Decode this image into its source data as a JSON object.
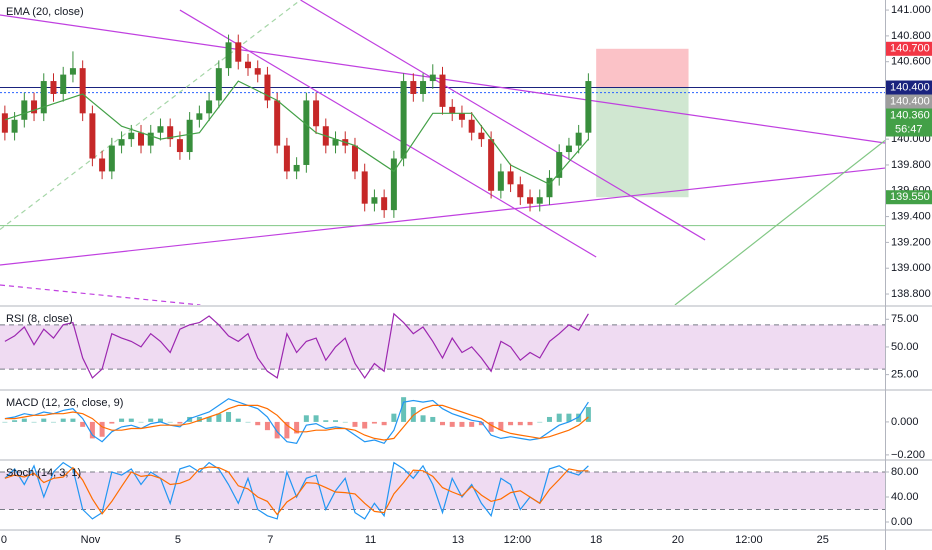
{
  "chart_data": [
    {
      "type": "candlestick",
      "ema": {
        "name": "EMA (20, close)",
        "color": "#43a047",
        "x": [
          0.5,
          4.5,
          8.5,
          12.5,
          16.5,
          20.5,
          24.5,
          28.5,
          32.5,
          36.5,
          40.5,
          44.5,
          48.5,
          52.5,
          56.5,
          60.5
        ],
        "values": [
          140.15,
          140.25,
          140.35,
          140.1,
          140.0,
          140.05,
          140.45,
          140.3,
          140.05,
          139.95,
          139.75,
          140.2,
          140.2,
          139.8,
          139.65,
          140.0
        ]
      },
      "up_color": "#388e3c",
      "down_color": "#c62828",
      "open": [
        140.2,
        140.05,
        140.15,
        140.3,
        140.2,
        140.45,
        140.35,
        140.5,
        140.55,
        140.2,
        139.85,
        139.75,
        139.95,
        140.0,
        140.05,
        139.95,
        140.05,
        140.1,
        140.0,
        139.9,
        140.15,
        140.2,
        140.3,
        140.55,
        140.75,
        140.6,
        140.55,
        140.5,
        140.3,
        139.95,
        139.75,
        139.8,
        140.3,
        140.1,
        139.95,
        140.0,
        139.95,
        139.75,
        139.5,
        139.55,
        139.45,
        139.85,
        140.45,
        140.35,
        140.45,
        140.5,
        140.25,
        140.2,
        140.15,
        140.05,
        140.0,
        139.6,
        139.75,
        139.65,
        139.55,
        139.5,
        139.55,
        139.7,
        139.9,
        139.95,
        140.05
      ],
      "high": [
        140.26,
        140.21,
        140.36,
        140.36,
        140.51,
        140.51,
        140.56,
        140.68,
        140.61,
        140.26,
        139.91,
        140.01,
        140.06,
        140.11,
        140.11,
        140.11,
        140.16,
        140.16,
        140.06,
        140.21,
        140.26,
        140.36,
        140.61,
        140.81,
        140.81,
        140.66,
        140.61,
        140.56,
        140.36,
        140.01,
        139.86,
        140.36,
        140.36,
        140.16,
        140.06,
        140.06,
        140.01,
        139.81,
        139.61,
        139.61,
        139.91,
        140.51,
        140.51,
        140.51,
        140.58,
        140.56,
        140.31,
        140.26,
        140.21,
        140.11,
        140.06,
        139.81,
        139.81,
        139.71,
        139.61,
        139.61,
        139.76,
        139.96,
        140.01,
        140.11,
        140.51
      ],
      "low": [
        139.99,
        139.99,
        140.09,
        140.14,
        140.14,
        140.29,
        140.29,
        140.44,
        140.14,
        139.79,
        139.69,
        139.69,
        139.89,
        139.94,
        139.89,
        139.89,
        139.99,
        139.94,
        139.84,
        139.84,
        140.09,
        140.14,
        140.24,
        140.49,
        140.54,
        140.49,
        140.44,
        140.24,
        139.89,
        139.69,
        139.69,
        139.74,
        140.04,
        139.89,
        139.89,
        139.89,
        139.69,
        139.44,
        139.44,
        139.39,
        139.39,
        139.79,
        140.29,
        140.29,
        140.39,
        140.19,
        140.14,
        140.09,
        139.99,
        139.94,
        139.54,
        139.54,
        139.59,
        139.49,
        139.44,
        139.44,
        139.49,
        139.64,
        139.84,
        139.89,
        139.99
      ],
      "close": [
        140.05,
        140.15,
        140.3,
        140.2,
        140.45,
        140.35,
        140.5,
        140.55,
        140.2,
        139.85,
        139.75,
        139.95,
        140.0,
        140.05,
        139.95,
        140.05,
        140.1,
        140.0,
        139.9,
        140.15,
        140.2,
        140.3,
        140.55,
        140.75,
        140.6,
        140.55,
        140.5,
        140.3,
        139.95,
        139.75,
        139.8,
        140.3,
        140.1,
        139.95,
        140.0,
        139.95,
        139.75,
        139.5,
        139.55,
        139.45,
        139.85,
        140.45,
        140.35,
        140.45,
        140.5,
        140.25,
        140.2,
        140.15,
        140.05,
        140.0,
        139.6,
        139.75,
        139.65,
        139.55,
        139.5,
        139.55,
        139.7,
        139.9,
        139.95,
        140.05,
        140.45
      ],
      "ylim": [
        138.715,
        141.078
      ],
      "yticks": [
        {
          "value": 141,
          "label": "141.000"
        },
        {
          "value": 140.8,
          "label": "140.800"
        },
        {
          "value": 140.6,
          "label": "140.600"
        },
        {
          "value": 140,
          "label": "140.000"
        },
        {
          "value": 139.8,
          "label": "139.800"
        },
        {
          "value": 139.6,
          "label": "139.600"
        },
        {
          "value": 139.4,
          "label": "139.400"
        },
        {
          "value": 139.2,
          "label": "139.200"
        },
        {
          "value": 139,
          "label": "139.000"
        },
        {
          "value": 138.8,
          "label": "138.800"
        }
      ],
      "xlim": [
        0,
        91
      ],
      "xticks": [
        {
          "value": 0.4,
          "label": "0"
        },
        {
          "value": 9.3,
          "label": "Nov"
        },
        {
          "value": 18.3,
          "label": "5"
        },
        {
          "value": 27.8,
          "label": "7"
        },
        {
          "value": 38.1,
          "label": "11"
        },
        {
          "value": 47.1,
          "label": "13"
        },
        {
          "value": 53.2,
          "label": "12:00"
        },
        {
          "value": 61.3,
          "label": "18"
        },
        {
          "value": 69.7,
          "label": "20"
        },
        {
          "value": 77,
          "label": "12:00"
        },
        {
          "value": 84.6,
          "label": "25"
        }
      ],
      "trend_lines": [
        {
          "x": [
            0,
            91
          ],
          "y": [
            140.962,
            139.97
          ],
          "color": "#c040e0"
        },
        {
          "x": [
            0,
            91
          ],
          "y": [
            139.025,
            139.776
          ],
          "color": "#c040e0"
        },
        {
          "x": [
            18.5,
            61.3
          ],
          "y": [
            141.0,
            139.087
          ],
          "color": "#c040e0"
        },
        {
          "x": [
            30.9,
            72.5
          ],
          "y": [
            141.078,
            139.219
          ],
          "color": "#c040e0"
        },
        {
          "x": [
            0,
            20.6
          ],
          "y": [
            138.87,
            138.715
          ],
          "color": "#c040e0",
          "dash": true
        },
        {
          "x": [
            69.4,
            91
          ],
          "y": [
            138.715,
            139.99
          ],
          "color": "#81c784"
        },
        {
          "x": [
            0,
            30.9
          ],
          "y": [
            139.3,
            141.078
          ],
          "color": "#a5d6a7",
          "dash": true
        }
      ],
      "hlines": [
        {
          "value": 140.4,
          "color": "#1a237e"
        },
        {
          "value": 140.36,
          "color": "#2962ff",
          "dash": true
        },
        {
          "value": 139.33,
          "color": "#81c784"
        }
      ],
      "position": {
        "x": [
          61.3,
          70.8
        ],
        "stop": 140.7,
        "entry": 140.4,
        "target": 139.55,
        "stop_color": "#f23645",
        "target_color": "#43a047"
      },
      "price_labels": [
        {
          "value": 140.7,
          "label": "140.700",
          "color": "#f23645"
        },
        {
          "value": 140.4,
          "label": "140.400",
          "color": "#1a237e"
        },
        {
          "value": 140.4,
          "label": "140.400",
          "color": "#9e9e9e"
        },
        {
          "value": 140.36,
          "label": "140.360",
          "color": "#43a047"
        },
        {
          "value": 139.55,
          "label": "139.550",
          "color": "#43a047"
        }
      ],
      "countdown": "56:47"
    },
    {
      "type": "line",
      "title": "RSI (8, close)",
      "color": "#9c27b0",
      "values": [
        55,
        60,
        68,
        52,
        66,
        58,
        70,
        72,
        40,
        22,
        30,
        62,
        58,
        55,
        50,
        62,
        55,
        45,
        66,
        70,
        72,
        78,
        70,
        60,
        55,
        62,
        40,
        28,
        22,
        62,
        45,
        55,
        58,
        38,
        50,
        58,
        35,
        22,
        35,
        28,
        80,
        72,
        62,
        68,
        55,
        40,
        58,
        45,
        50,
        40,
        28,
        55,
        50,
        38,
        45,
        40,
        55,
        62,
        70,
        65,
        80
      ],
      "ylim": [
        12,
        86.1
      ],
      "yticks": [
        {
          "value": 75,
          "label": "75.00"
        },
        {
          "value": 50,
          "label": "50.00"
        },
        {
          "value": 25,
          "label": "25.00"
        }
      ],
      "bands": [
        70,
        30
      ],
      "band_color": "#e1bee7"
    },
    {
      "type": "line",
      "title": "MACD (12, 26, close, 9)",
      "series": [
        {
          "style": "bar",
          "up_color": "#26a69a",
          "down_color": "#ef5350",
          "values": [
            0,
            0.01,
            0.02,
            0,
            0.02,
            0,
            0.02,
            0.02,
            -0.03,
            -0.1,
            -0.09,
            -0.01,
            0.02,
            0.02,
            0,
            0.02,
            0.02,
            0,
            -0.01,
            0.03,
            0.03,
            0.03,
            0.05,
            0.06,
            0.02,
            0,
            -0.02,
            -0.05,
            -0.1,
            -0.1,
            -0.07,
            0.04,
            0.04,
            0.01,
            0.01,
            0,
            -0.03,
            -0.04,
            -0.01,
            -0.02,
            0.05,
            0.15,
            0.09,
            0.04,
            0.03,
            -0.02,
            -0.03,
            -0.03,
            -0.03,
            -0.02,
            -0.06,
            -0.05,
            -0.02,
            -0.02,
            -0.02,
            0,
            0.03,
            0.05,
            0.05,
            0.05,
            0.09
          ]
        },
        {
          "color": "#2196f3",
          "values": [
            0.02,
            0.03,
            0.05,
            0.04,
            0.06,
            0.05,
            0.07,
            0.08,
            0.02,
            -0.08,
            -0.12,
            -0.06,
            -0.03,
            -0.02,
            -0.04,
            -0.01,
            0.0,
            -0.02,
            -0.03,
            0.02,
            0.04,
            0.06,
            0.1,
            0.14,
            0.12,
            0.1,
            0.08,
            0.03,
            -0.06,
            -0.12,
            -0.13,
            -0.02,
            -0.01,
            -0.04,
            -0.03,
            -0.04,
            -0.08,
            -0.12,
            -0.11,
            -0.13,
            -0.05,
            0.12,
            0.13,
            0.12,
            0.13,
            0.08,
            0.05,
            0.03,
            0.01,
            0.0,
            -0.08,
            -0.1,
            -0.09,
            -0.1,
            -0.11,
            -0.1,
            -0.06,
            -0.02,
            0.0,
            0.03,
            0.12
          ]
        },
        {
          "color": "#ff6d00",
          "values": [
            0.02,
            0.02,
            0.03,
            0.04,
            0.04,
            0.05,
            0.05,
            0.06,
            0.05,
            0.02,
            -0.03,
            -0.05,
            -0.05,
            -0.04,
            -0.04,
            -0.03,
            -0.02,
            -0.02,
            -0.02,
            -0.01,
            0.01,
            0.03,
            0.05,
            0.08,
            0.1,
            0.1,
            0.1,
            0.08,
            0.04,
            -0.02,
            -0.06,
            -0.06,
            -0.05,
            -0.05,
            -0.04,
            -0.04,
            -0.05,
            -0.08,
            -0.1,
            -0.11,
            -0.1,
            -0.03,
            0.04,
            0.08,
            0.1,
            0.1,
            0.08,
            0.06,
            0.04,
            0.02,
            -0.02,
            -0.05,
            -0.07,
            -0.08,
            -0.09,
            -0.1,
            -0.09,
            -0.07,
            -0.05,
            -0.02,
            0.03
          ]
        }
      ],
      "ylim": [
        -0.225,
        0.1875
      ],
      "yticks": [
        {
          "value": 0,
          "label": "0.000"
        },
        {
          "value": -0.2,
          "label": "−0.200"
        }
      ]
    },
    {
      "type": "line",
      "title": "Stoch (14, 3, 1)",
      "series": [
        {
          "color": "#2196f3",
          "values": [
            70,
            85,
            60,
            90,
            40,
            80,
            95,
            85,
            20,
            5,
            15,
            80,
            75,
            85,
            60,
            80,
            70,
            30,
            85,
            90,
            80,
            95,
            85,
            60,
            30,
            70,
            20,
            10,
            5,
            80,
            40,
            70,
            75,
            20,
            50,
            70,
            15,
            5,
            30,
            10,
            95,
            85,
            70,
            90,
            60,
            15,
            70,
            40,
            60,
            30,
            10,
            70,
            60,
            20,
            40,
            30,
            85,
            90,
            80,
            75,
            90
          ]
        },
        {
          "color": "#ff6d00",
          "values": [
            70,
            75,
            72,
            78,
            63,
            70,
            72,
            87,
            67,
            37,
            13,
            33,
            57,
            80,
            73,
            75,
            70,
            60,
            62,
            68,
            85,
            88,
            87,
            80,
            58,
            53,
            40,
            33,
            12,
            32,
            42,
            63,
            62,
            55,
            48,
            47,
            45,
            30,
            17,
            15,
            45,
            63,
            83,
            82,
            73,
            55,
            48,
            42,
            57,
            43,
            33,
            37,
            47,
            50,
            40,
            30,
            52,
            68,
            85,
            82,
            82
          ]
        }
      ],
      "ylim": [
        -11.2,
        97.6
      ],
      "yticks": [
        {
          "value": 80,
          "label": "80.00"
        },
        {
          "value": 40,
          "label": "40.00"
        },
        {
          "value": 0,
          "label": "0.00"
        }
      ],
      "bands": [
        80,
        20
      ],
      "band_color": "#e1bee7"
    }
  ]
}
